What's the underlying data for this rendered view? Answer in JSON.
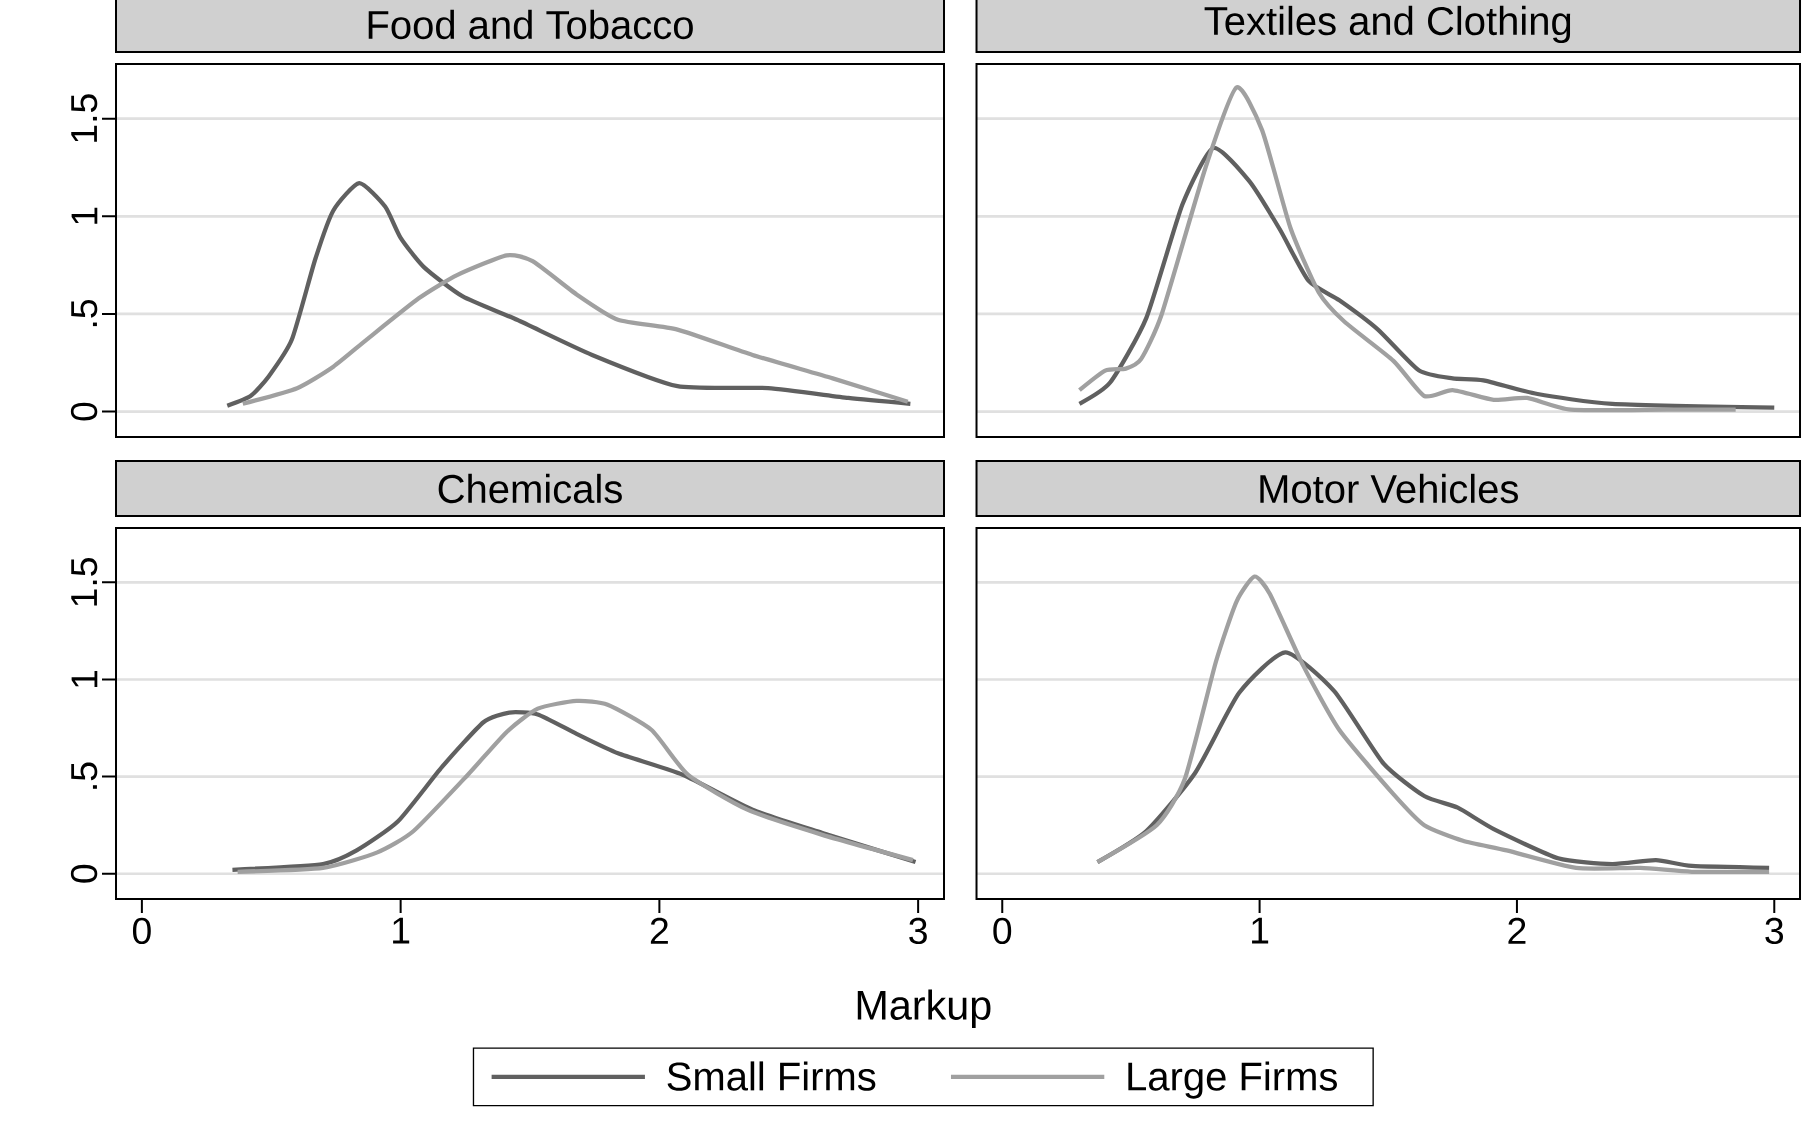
{
  "chart_data": [
    {
      "type": "line",
      "title": "Food and Tobacco",
      "xlim": [
        -0.1,
        3.1
      ],
      "ylim": [
        -0.13,
        1.78
      ],
      "yticks": [
        0,
        {
          "value": 0.5,
          "label": ".5"
        },
        1,
        1.5
      ],
      "grid": "y",
      "tick_labels": "y",
      "series": [
        {
          "color": "#606060",
          "x": [
            0.33,
            0.42,
            0.49,
            0.58,
            0.67,
            0.74,
            0.84,
            0.94,
            1.0,
            1.09,
            1.24,
            1.45,
            1.74,
            2.07,
            2.42,
            2.73,
            2.97
          ],
          "values": [
            0.03,
            0.08,
            0.18,
            0.37,
            0.78,
            1.03,
            1.17,
            1.05,
            0.89,
            0.74,
            0.59,
            0.47,
            0.29,
            0.13,
            0.12,
            0.07,
            0.04
          ]
        },
        {
          "color": "#a0a0a0",
          "x": [
            0.39,
            0.6,
            0.74,
            0.87,
            1.07,
            1.22,
            1.41,
            1.51,
            1.68,
            1.84,
            2.07,
            2.36,
            2.67,
            2.96
          ],
          "values": [
            0.04,
            0.12,
            0.23,
            0.37,
            0.58,
            0.7,
            0.8,
            0.77,
            0.6,
            0.47,
            0.42,
            0.29,
            0.17,
            0.05
          ]
        }
      ]
    },
    {
      "type": "line",
      "title": "Textiles and Clothing",
      "xlim": [
        -0.1,
        3.1
      ],
      "ylim": [
        -0.13,
        1.78
      ],
      "yticks": [
        0,
        0.5,
        1,
        1.5
      ],
      "grid": "y",
      "tick_labels": false,
      "series": [
        {
          "color": "#606060",
          "x": [
            0.3,
            0.42,
            0.56,
            0.7,
            0.82,
            0.96,
            1.08,
            1.19,
            1.31,
            1.46,
            1.62,
            1.75,
            1.87,
            2.08,
            2.37,
            3.0
          ],
          "values": [
            0.04,
            0.15,
            0.48,
            1.06,
            1.35,
            1.18,
            0.93,
            0.67,
            0.57,
            0.42,
            0.21,
            0.17,
            0.16,
            0.09,
            0.04,
            0.02
          ]
        },
        {
          "color": "#a0a0a0",
          "x": [
            0.3,
            0.4,
            0.48,
            0.54,
            0.62,
            0.79,
            0.91,
            1.01,
            1.12,
            1.23,
            1.33,
            1.52,
            1.64,
            1.75,
            1.91,
            2.04,
            2.21,
            2.58,
            2.85
          ],
          "values": [
            0.11,
            0.21,
            0.22,
            0.27,
            0.5,
            1.25,
            1.66,
            1.44,
            0.94,
            0.61,
            0.46,
            0.26,
            0.08,
            0.11,
            0.06,
            0.07,
            0.01,
            0.01,
            0.01
          ]
        }
      ]
    },
    {
      "type": "line",
      "title": "Chemicals",
      "xlabel": "Markup",
      "xlim": [
        -0.1,
        3.1
      ],
      "ylim": [
        -0.13,
        1.78
      ],
      "xticks": [
        0,
        1,
        2,
        3
      ],
      "yticks": [
        0,
        {
          "value": 0.5,
          "label": ".5"
        },
        1,
        1.5
      ],
      "grid": "y",
      "legend": "bottom",
      "series": [
        {
          "name": "Small Firms",
          "color": "#606060",
          "x": [
            0.35,
            0.7,
            0.83,
            0.99,
            1.16,
            1.32,
            1.42,
            1.53,
            1.68,
            1.84,
            2.09,
            2.36,
            2.63,
            2.99
          ],
          "values": [
            0.02,
            0.05,
            0.12,
            0.27,
            0.55,
            0.78,
            0.83,
            0.82,
            0.72,
            0.62,
            0.51,
            0.33,
            0.21,
            0.06
          ]
        },
        {
          "name": "Large Firms",
          "color": "#a0a0a0",
          "x": [
            0.37,
            0.7,
            0.91,
            1.05,
            1.26,
            1.41,
            1.53,
            1.68,
            1.8,
            1.97,
            2.11,
            2.34,
            2.63,
            2.98
          ],
          "values": [
            0.01,
            0.03,
            0.11,
            0.22,
            0.51,
            0.73,
            0.85,
            0.89,
            0.87,
            0.74,
            0.51,
            0.33,
            0.2,
            0.07
          ]
        }
      ]
    },
    {
      "type": "line",
      "title": "Motor Vehicles",
      "xlim": [
        -0.1,
        3.1
      ],
      "ylim": [
        -0.13,
        1.78
      ],
      "xticks": [
        0,
        1,
        2,
        3
      ],
      "yticks": [
        0,
        0.5,
        1,
        1.5
      ],
      "grid": "y",
      "tick_labels": "x",
      "series": [
        {
          "color": "#606060",
          "x": [
            0.37,
            0.56,
            0.75,
            0.92,
            1.1,
            1.29,
            1.48,
            1.64,
            1.77,
            1.91,
            2.16,
            2.37,
            2.54,
            2.68,
            2.98
          ],
          "values": [
            0.06,
            0.22,
            0.52,
            0.93,
            1.14,
            0.94,
            0.57,
            0.4,
            0.34,
            0.23,
            0.08,
            0.05,
            0.07,
            0.04,
            0.03
          ]
        },
        {
          "color": "#a0a0a0",
          "x": [
            0.37,
            0.6,
            0.71,
            0.83,
            0.91,
            0.98,
            1.04,
            1.17,
            1.31,
            1.52,
            1.64,
            1.79,
            1.96,
            2.23,
            2.48,
            2.68,
            2.98
          ],
          "values": [
            0.06,
            0.25,
            0.49,
            1.09,
            1.4,
            1.53,
            1.44,
            1.07,
            0.74,
            0.41,
            0.25,
            0.17,
            0.12,
            0.03,
            0.03,
            0.01,
            0.01
          ]
        }
      ]
    }
  ]
}
